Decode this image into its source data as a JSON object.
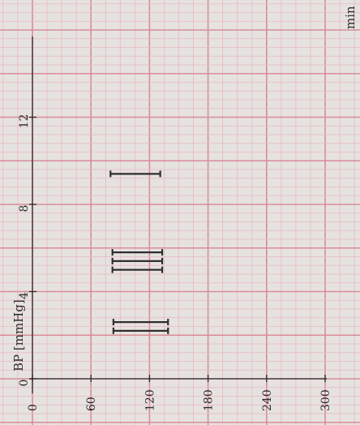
{
  "chart_data": {
    "type": "scatter",
    "orientation": "rotated-90-ccw",
    "title": "",
    "xlabel": "min",
    "ylabel": "BP [mmHg]",
    "xlim": [
      0,
      16
    ],
    "ylim": [
      0,
      300
    ],
    "x_ticks": [
      "0",
      "4",
      "8",
      "12"
    ],
    "y_ticks": [
      "0",
      "60",
      "120",
      "180",
      "240",
      "300"
    ],
    "grid": true,
    "series": [
      {
        "marker": "I-bar (systolic/diastolic range)",
        "points": [
          {
            "x": 2.2,
            "systolic": 139,
            "diastolic": 83
          },
          {
            "x": 2.6,
            "systolic": 139,
            "diastolic": 83
          },
          {
            "x": 5.0,
            "systolic": 133,
            "diastolic": 82
          },
          {
            "x": 5.4,
            "systolic": 133,
            "diastolic": 82
          },
          {
            "x": 5.8,
            "systolic": 133,
            "diastolic": 82
          },
          {
            "x": 9.4,
            "systolic": 131,
            "diastolic": 80
          }
        ]
      }
    ],
    "colors": {
      "paper": "#e6e2df",
      "grid_major": "#d98c9a",
      "grid_minor": "#e9b9c2",
      "ink": "#2b2b2b",
      "marker": "#2e2e2e"
    }
  }
}
